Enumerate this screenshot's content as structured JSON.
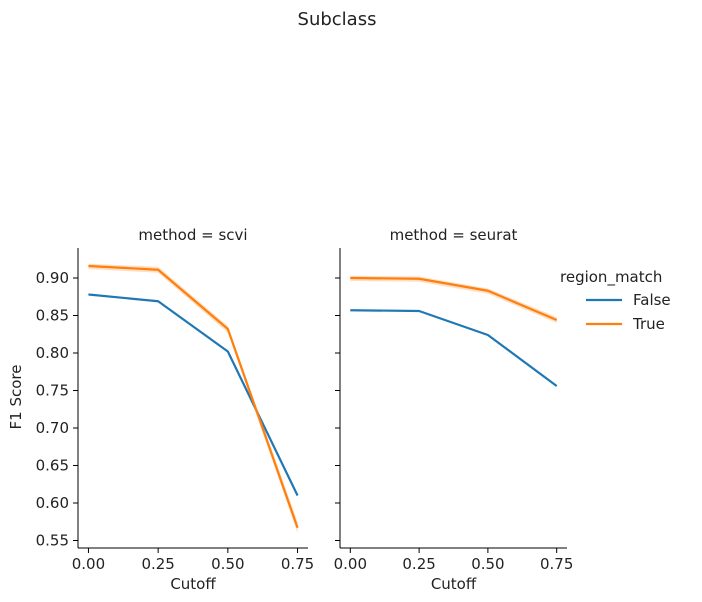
{
  "title": "Subclass",
  "chart_data": {
    "type": "line",
    "title": "Subclass",
    "xlabel": "Cutoff",
    "ylabel": "F1 Score",
    "xlim": [
      -0.0375,
      0.7875
    ],
    "ylim": [
      0.54,
      0.94
    ],
    "x_ticks": [
      0.0,
      0.25,
      0.5,
      0.75
    ],
    "x_tick_labels": [
      "0.00",
      "0.25",
      "0.50",
      "0.75"
    ],
    "y_ticks": [
      0.55,
      0.6,
      0.65,
      0.7,
      0.75,
      0.8,
      0.85,
      0.9
    ],
    "y_tick_labels": [
      "0.55",
      "0.60",
      "0.65",
      "0.70",
      "0.75",
      "0.80",
      "0.85",
      "0.90"
    ],
    "grid": false,
    "legend": {
      "title": "region_match",
      "placement": "right",
      "entries": [
        {
          "label": "False",
          "color": "#1f77b4"
        },
        {
          "label": "True",
          "color": "#ff7f0e"
        }
      ]
    },
    "panels": [
      {
        "title": "method = scvi",
        "x": [
          0.0,
          0.25,
          0.5,
          0.75
        ],
        "series": [
          {
            "name": "False",
            "color": "#1f77b4",
            "values": [
              0.878,
              0.869,
              0.802,
              0.61
            ],
            "ci_low": [
              0.877,
              0.868,
              0.801,
              0.608
            ],
            "ci_high": [
              0.879,
              0.87,
              0.803,
              0.612
            ]
          },
          {
            "name": "True",
            "color": "#ff7f0e",
            "values": [
              0.916,
              0.911,
              0.832,
              0.567
            ],
            "ci_low": [
              0.912,
              0.907,
              0.827,
              0.56
            ],
            "ci_high": [
              0.919,
              0.915,
              0.836,
              0.575
            ]
          }
        ]
      },
      {
        "title": "method = seurat",
        "x": [
          0.0,
          0.25,
          0.5,
          0.75
        ],
        "series": [
          {
            "name": "False",
            "color": "#1f77b4",
            "values": [
              0.857,
              0.856,
              0.824,
              0.756
            ],
            "ci_low": [
              0.856,
              0.855,
              0.823,
              0.755
            ],
            "ci_high": [
              0.858,
              0.857,
              0.825,
              0.757
            ]
          },
          {
            "name": "True",
            "color": "#ff7f0e",
            "values": [
              0.9,
              0.899,
              0.883,
              0.844
            ],
            "ci_low": [
              0.896,
              0.895,
              0.879,
              0.84
            ],
            "ci_high": [
              0.903,
              0.902,
              0.886,
              0.848
            ]
          }
        ]
      }
    ]
  }
}
